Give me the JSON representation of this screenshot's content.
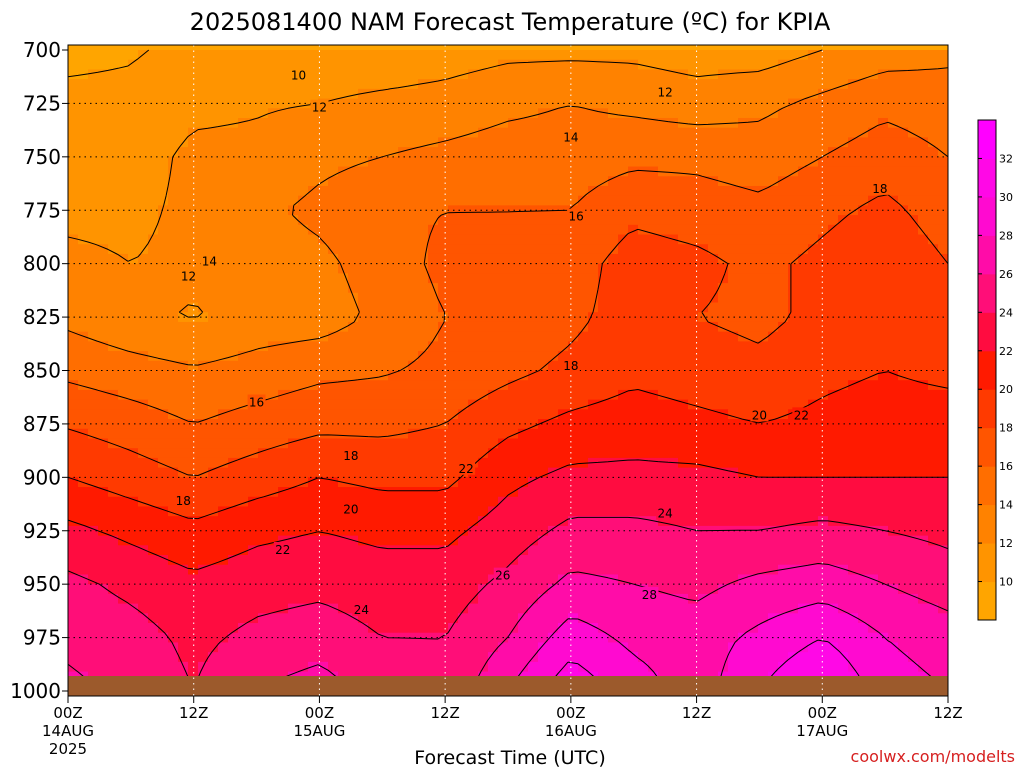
{
  "chart_data": {
    "type": "heatmap",
    "title": "2025081400 NAM Forecast Temperature (ºC) for KPIA",
    "xlabel": "Forecast Time (UTC)",
    "ylabel": "",
    "watermark": "coolwx.com/modelts",
    "y_axis": {
      "scale": "pressure (hPa), decreasing upward",
      "range": [
        1000,
        700
      ],
      "ticks": [
        700,
        725,
        750,
        775,
        800,
        825,
        850,
        875,
        900,
        925,
        950,
        975,
        1000
      ],
      "tick_labels": [
        "700",
        "725",
        "750",
        "775",
        "800",
        "825",
        "850",
        "875",
        "900",
        "925",
        "950",
        "975",
        "1000"
      ]
    },
    "x_axis": {
      "range_hours": [
        0,
        84
      ],
      "ticks": [
        {
          "hour": 0,
          "label": "00Z",
          "date": "14AUG",
          "year": "2025"
        },
        {
          "hour": 12,
          "label": "12Z",
          "date": "",
          "year": ""
        },
        {
          "hour": 24,
          "label": "00Z",
          "date": "15AUG",
          "year": ""
        },
        {
          "hour": 36,
          "label": "12Z",
          "date": "",
          "year": ""
        },
        {
          "hour": 48,
          "label": "00Z",
          "date": "16AUG",
          "year": ""
        },
        {
          "hour": 60,
          "label": "12Z",
          "date": "",
          "year": ""
        },
        {
          "hour": 72,
          "label": "00Z",
          "date": "17AUG",
          "year": ""
        },
        {
          "hour": 84,
          "label": "12Z",
          "date": "",
          "year": ""
        }
      ]
    },
    "grid": true,
    "colorbar": {
      "placement": "right",
      "levels": [
        10,
        12,
        14,
        16,
        18,
        20,
        22,
        24,
        26,
        28,
        30,
        32
      ],
      "colors": [
        "#ffa500",
        "#ff9400",
        "#ff8200",
        "#ff6e00",
        "#ff5500",
        "#ff3a00",
        "#ff1a00",
        "#ff0c40",
        "#ff0e78",
        "#ff0ca8",
        "#ff0ad0",
        "#ff08e6",
        "#ff00ff"
      ]
    },
    "ground_color": "#9c5a2c",
    "hours": [
      0,
      6,
      12,
      18,
      24,
      30,
      36,
      42,
      48,
      54,
      60,
      66,
      72,
      78,
      84
    ],
    "pressure_levels": [
      1000,
      975,
      950,
      925,
      900,
      875,
      850,
      825,
      800,
      775,
      750,
      725,
      700
    ],
    "temperature_c": [
      [
        26.5,
        25.5,
        24.0,
        26.0,
        27.0,
        25.0,
        24.5,
        28.0,
        31.5,
        29.0,
        27.0,
        30.0,
        32.5,
        29.0,
        28.0
      ],
      [
        25.5,
        24.8,
        23.5,
        24.5,
        25.0,
        24.0,
        24.0,
        26.0,
        29.0,
        27.5,
        27.0,
        28.5,
        30.0,
        28.0,
        27.0
      ],
      [
        24.5,
        23.5,
        22.5,
        23.2,
        23.5,
        23.0,
        23.0,
        24.5,
        26.5,
        26.0,
        25.5,
        26.5,
        27.0,
        26.0,
        25.0
      ],
      [
        22.5,
        21.5,
        20.5,
        21.5,
        22.0,
        21.5,
        21.5,
        23.0,
        24.5,
        24.5,
        24.0,
        24.0,
        24.5,
        24.0,
        23.5
      ],
      [
        20.0,
        19.0,
        18.0,
        19.0,
        20.0,
        19.5,
        19.5,
        21.5,
        22.5,
        22.5,
        22.5,
        22.0,
        22.0,
        22.0,
        22.0
      ],
      [
        17.8,
        17.0,
        16.0,
        16.8,
        17.5,
        17.5,
        18.0,
        19.5,
        20.5,
        21.0,
        20.5,
        20.0,
        20.5,
        21.0,
        21.0
      ],
      [
        15.5,
        14.8,
        14.2,
        14.8,
        15.5,
        15.8,
        16.5,
        17.5,
        18.5,
        19.5,
        19.0,
        18.5,
        19.5,
        20.0,
        19.5
      ],
      [
        13.5,
        12.5,
        11.8,
        12.8,
        13.0,
        14.5,
        16.0,
        16.5,
        17.5,
        19.0,
        18.0,
        17.5,
        18.5,
        19.5,
        18.5
      ],
      [
        12.5,
        12.0,
        12.5,
        13.0,
        13.5,
        15.0,
        16.5,
        16.5,
        17.0,
        19.0,
        18.5,
        17.5,
        18.5,
        19.5,
        18.0
      ],
      [
        11.5,
        11.5,
        12.5,
        13.5,
        14.5,
        15.5,
        16.0,
        16.0,
        16.0,
        17.5,
        17.0,
        16.5,
        17.5,
        18.5,
        17.0
      ],
      [
        11.0,
        11.0,
        12.5,
        12.5,
        13.5,
        14.0,
        14.5,
        15.0,
        15.0,
        15.5,
        15.5,
        15.0,
        16.0,
        17.0,
        16.0
      ],
      [
        10.5,
        10.5,
        11.5,
        11.8,
        12.0,
        12.5,
        12.8,
        13.5,
        14.0,
        13.5,
        13.0,
        13.5,
        14.5,
        15.5,
        15.0
      ],
      [
        9.5,
        9.8,
        10.5,
        10.5,
        10.5,
        10.5,
        11.0,
        11.5,
        11.5,
        11.5,
        11.0,
        11.0,
        12.0,
        13.0,
        13.5
      ]
    ],
    "contour_labels": [
      {
        "text": "10",
        "hour": 22.0,
        "p": 712
      },
      {
        "text": "12",
        "hour": 24.0,
        "p": 727
      },
      {
        "text": "12",
        "hour": 57.0,
        "p": 720
      },
      {
        "text": "12",
        "hour": 11.5,
        "p": 806
      },
      {
        "text": "14",
        "hour": 48.0,
        "p": 741
      },
      {
        "text": "14",
        "hour": 13.5,
        "p": 799
      },
      {
        "text": "16",
        "hour": 48.5,
        "p": 778
      },
      {
        "text": "16",
        "hour": 18.0,
        "p": 865
      },
      {
        "text": "18",
        "hour": 77.5,
        "p": 765
      },
      {
        "text": "18",
        "hour": 48.0,
        "p": 848
      },
      {
        "text": "18",
        "hour": 27.0,
        "p": 890
      },
      {
        "text": "18",
        "hour": 11.0,
        "p": 911
      },
      {
        "text": "20",
        "hour": 66.0,
        "p": 871
      },
      {
        "text": "20",
        "hour": 27.0,
        "p": 915
      },
      {
        "text": "22",
        "hour": 70.0,
        "p": 871
      },
      {
        "text": "22",
        "hour": 38.0,
        "p": 896
      },
      {
        "text": "22",
        "hour": 20.5,
        "p": 934
      },
      {
        "text": "24",
        "hour": 57.0,
        "p": 917
      },
      {
        "text": "24",
        "hour": 28.0,
        "p": 962
      },
      {
        "text": "26",
        "hour": 41.5,
        "p": 946
      },
      {
        "text": "28",
        "hour": 55.5,
        "p": 955
      }
    ]
  }
}
